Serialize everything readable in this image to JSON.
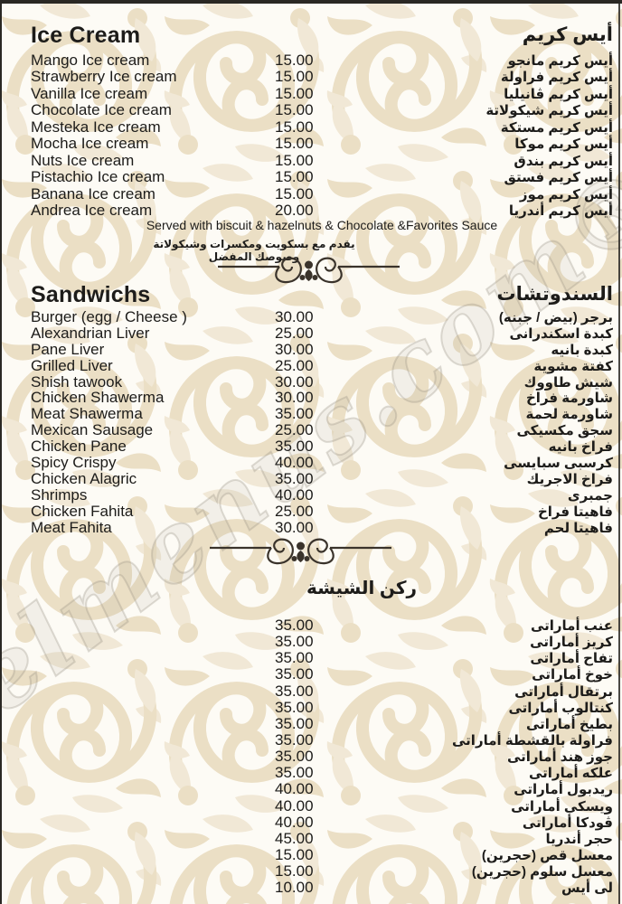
{
  "colors": {
    "background": "#fdfbf5",
    "pattern_beige": "#e8dabd",
    "pattern_light": "#efe5d0",
    "text": "#1d1c1a",
    "ornament": "#3a332b",
    "page_edge": "#2a2824"
  },
  "watermark": {
    "text": "elmenus.com®"
  },
  "menu": {
    "sections": {
      "ice_cream": {
        "title_en": "Ice Cream",
        "title_ar": "أيس كريم",
        "items": [
          {
            "en": "Mango Ice cream",
            "price": "15.00",
            "ar": "أيس كريم مانجو"
          },
          {
            "en": "Strawberry Ice cream",
            "price": "15.00",
            "ar": "أيس كريم فراولة"
          },
          {
            "en": "Vanilla Ice cream",
            "price": "15.00",
            "ar": "أيس كريم ڤانيليا"
          },
          {
            "en": "Chocolate Ice cream",
            "price": "15.00",
            "ar": "أيس كريم شيكولاتة"
          },
          {
            "en": "Mesteka Ice cream",
            "price": "15.00",
            "ar": "أيس كريم مستكة"
          },
          {
            "en": "Mocha Ice cream",
            "price": "15.00",
            "ar": "أيس كريم موكا"
          },
          {
            "en": "Nuts Ice cream",
            "price": "15.00",
            "ar": "أيس كريم بندق"
          },
          {
            "en": "Pistachio Ice cream",
            "price": "15.00",
            "ar": "أيس كريم فستق"
          },
          {
            "en": "Banana Ice cream",
            "price": "15.00",
            "ar": "أيس كريم موز"
          },
          {
            "en": "Andrea Ice cream",
            "price": "20.00",
            "ar": "أيس كريم أندريا"
          }
        ],
        "note_en": "Served with biscuit & hazelnuts & Chocolate &Favorites Sauce",
        "note_ar": "يقدم مع بسكويت ومكسرات وشيكولاتة وصوصك المفضل"
      },
      "sandwiches": {
        "title_en": "Sandwichs",
        "title_ar": "السندوتشات",
        "items": [
          {
            "en": "Burger (egg / Cheese )",
            "price": "30.00",
            "ar": "برجر (بيض / جبنه)"
          },
          {
            "en": "Alexandrian Liver",
            "price": "25.00",
            "ar": "كبدة اسكندرانى"
          },
          {
            "en": "Pane Liver",
            "price": "30.00",
            "ar": "كبدة بانيه"
          },
          {
            "en": "Grilled Liver",
            "price": "25.00",
            "ar": "كفتة مشوية"
          },
          {
            "en": "Shish tawook",
            "price": "30.00",
            "ar": "شيش طاووك"
          },
          {
            "en": "Chicken Shawerma",
            "price": "30.00",
            "ar": "شاورمة فراخ"
          },
          {
            "en": "Meat Shawerma",
            "price": "35.00",
            "ar": "شاورمة لحمة"
          },
          {
            "en": "Mexican Sausage",
            "price": "25.00",
            "ar": "سجق مكسيكى"
          },
          {
            "en": "Chicken Pane",
            "price": "35.00",
            "ar": "فراخ بانيه"
          },
          {
            "en": "Spicy Crispy",
            "price": "40.00",
            "ar": "كرسبى سبايسى"
          },
          {
            "en": "Chicken Alagric",
            "price": "35.00",
            "ar": "فراخ الاجريك"
          },
          {
            "en": "Shrimps",
            "price": "40.00",
            "ar": "جمبرى"
          },
          {
            "en": "Chicken Fahita",
            "price": "25.00",
            "ar": "فاهيتا فراخ"
          },
          {
            "en": "Meat Fahita",
            "price": "30.00",
            "ar": "فاهيتا لحم"
          }
        ]
      },
      "shisha": {
        "title_ar": "ركن الشيشة",
        "items": [
          {
            "en": "",
            "price": "35.00",
            "ar": "عنب أماراتى"
          },
          {
            "en": "",
            "price": "35.00",
            "ar": "كريز أماراتى"
          },
          {
            "en": "",
            "price": "35.00",
            "ar": "تفاح أماراتى"
          },
          {
            "en": "",
            "price": "35.00",
            "ar": "خوخ أماراتى"
          },
          {
            "en": "",
            "price": "35.00",
            "ar": "برتقال أماراتى"
          },
          {
            "en": "",
            "price": "35.00",
            "ar": "كنتالوب أماراتى"
          },
          {
            "en": "",
            "price": "35.00",
            "ar": "بطيخ أماراتى"
          },
          {
            "en": "",
            "price": "35.00",
            "ar": "فراولة بالقشطة أماراتى"
          },
          {
            "en": "",
            "price": "35.00",
            "ar": "جوز هند أماراتى"
          },
          {
            "en": "",
            "price": "35.00",
            "ar": "علكه أماراتى"
          },
          {
            "en": "",
            "price": "40.00",
            "ar": "ريدبول أماراتى"
          },
          {
            "en": "",
            "price": "40.00",
            "ar": "ويسكى أماراتى"
          },
          {
            "en": "",
            "price": "40.00",
            "ar": "ڤودكا أماراتى"
          },
          {
            "en": "",
            "price": "45.00",
            "ar": "حجر أندريا"
          },
          {
            "en": "",
            "price": "15.00",
            "ar": "معسل قص (حجرين)"
          },
          {
            "en": "",
            "price": "15.00",
            "ar": "معسل سلوم (حجرين)"
          },
          {
            "en": "",
            "price": "10.00",
            "ar": "لى أيس"
          }
        ]
      }
    }
  }
}
